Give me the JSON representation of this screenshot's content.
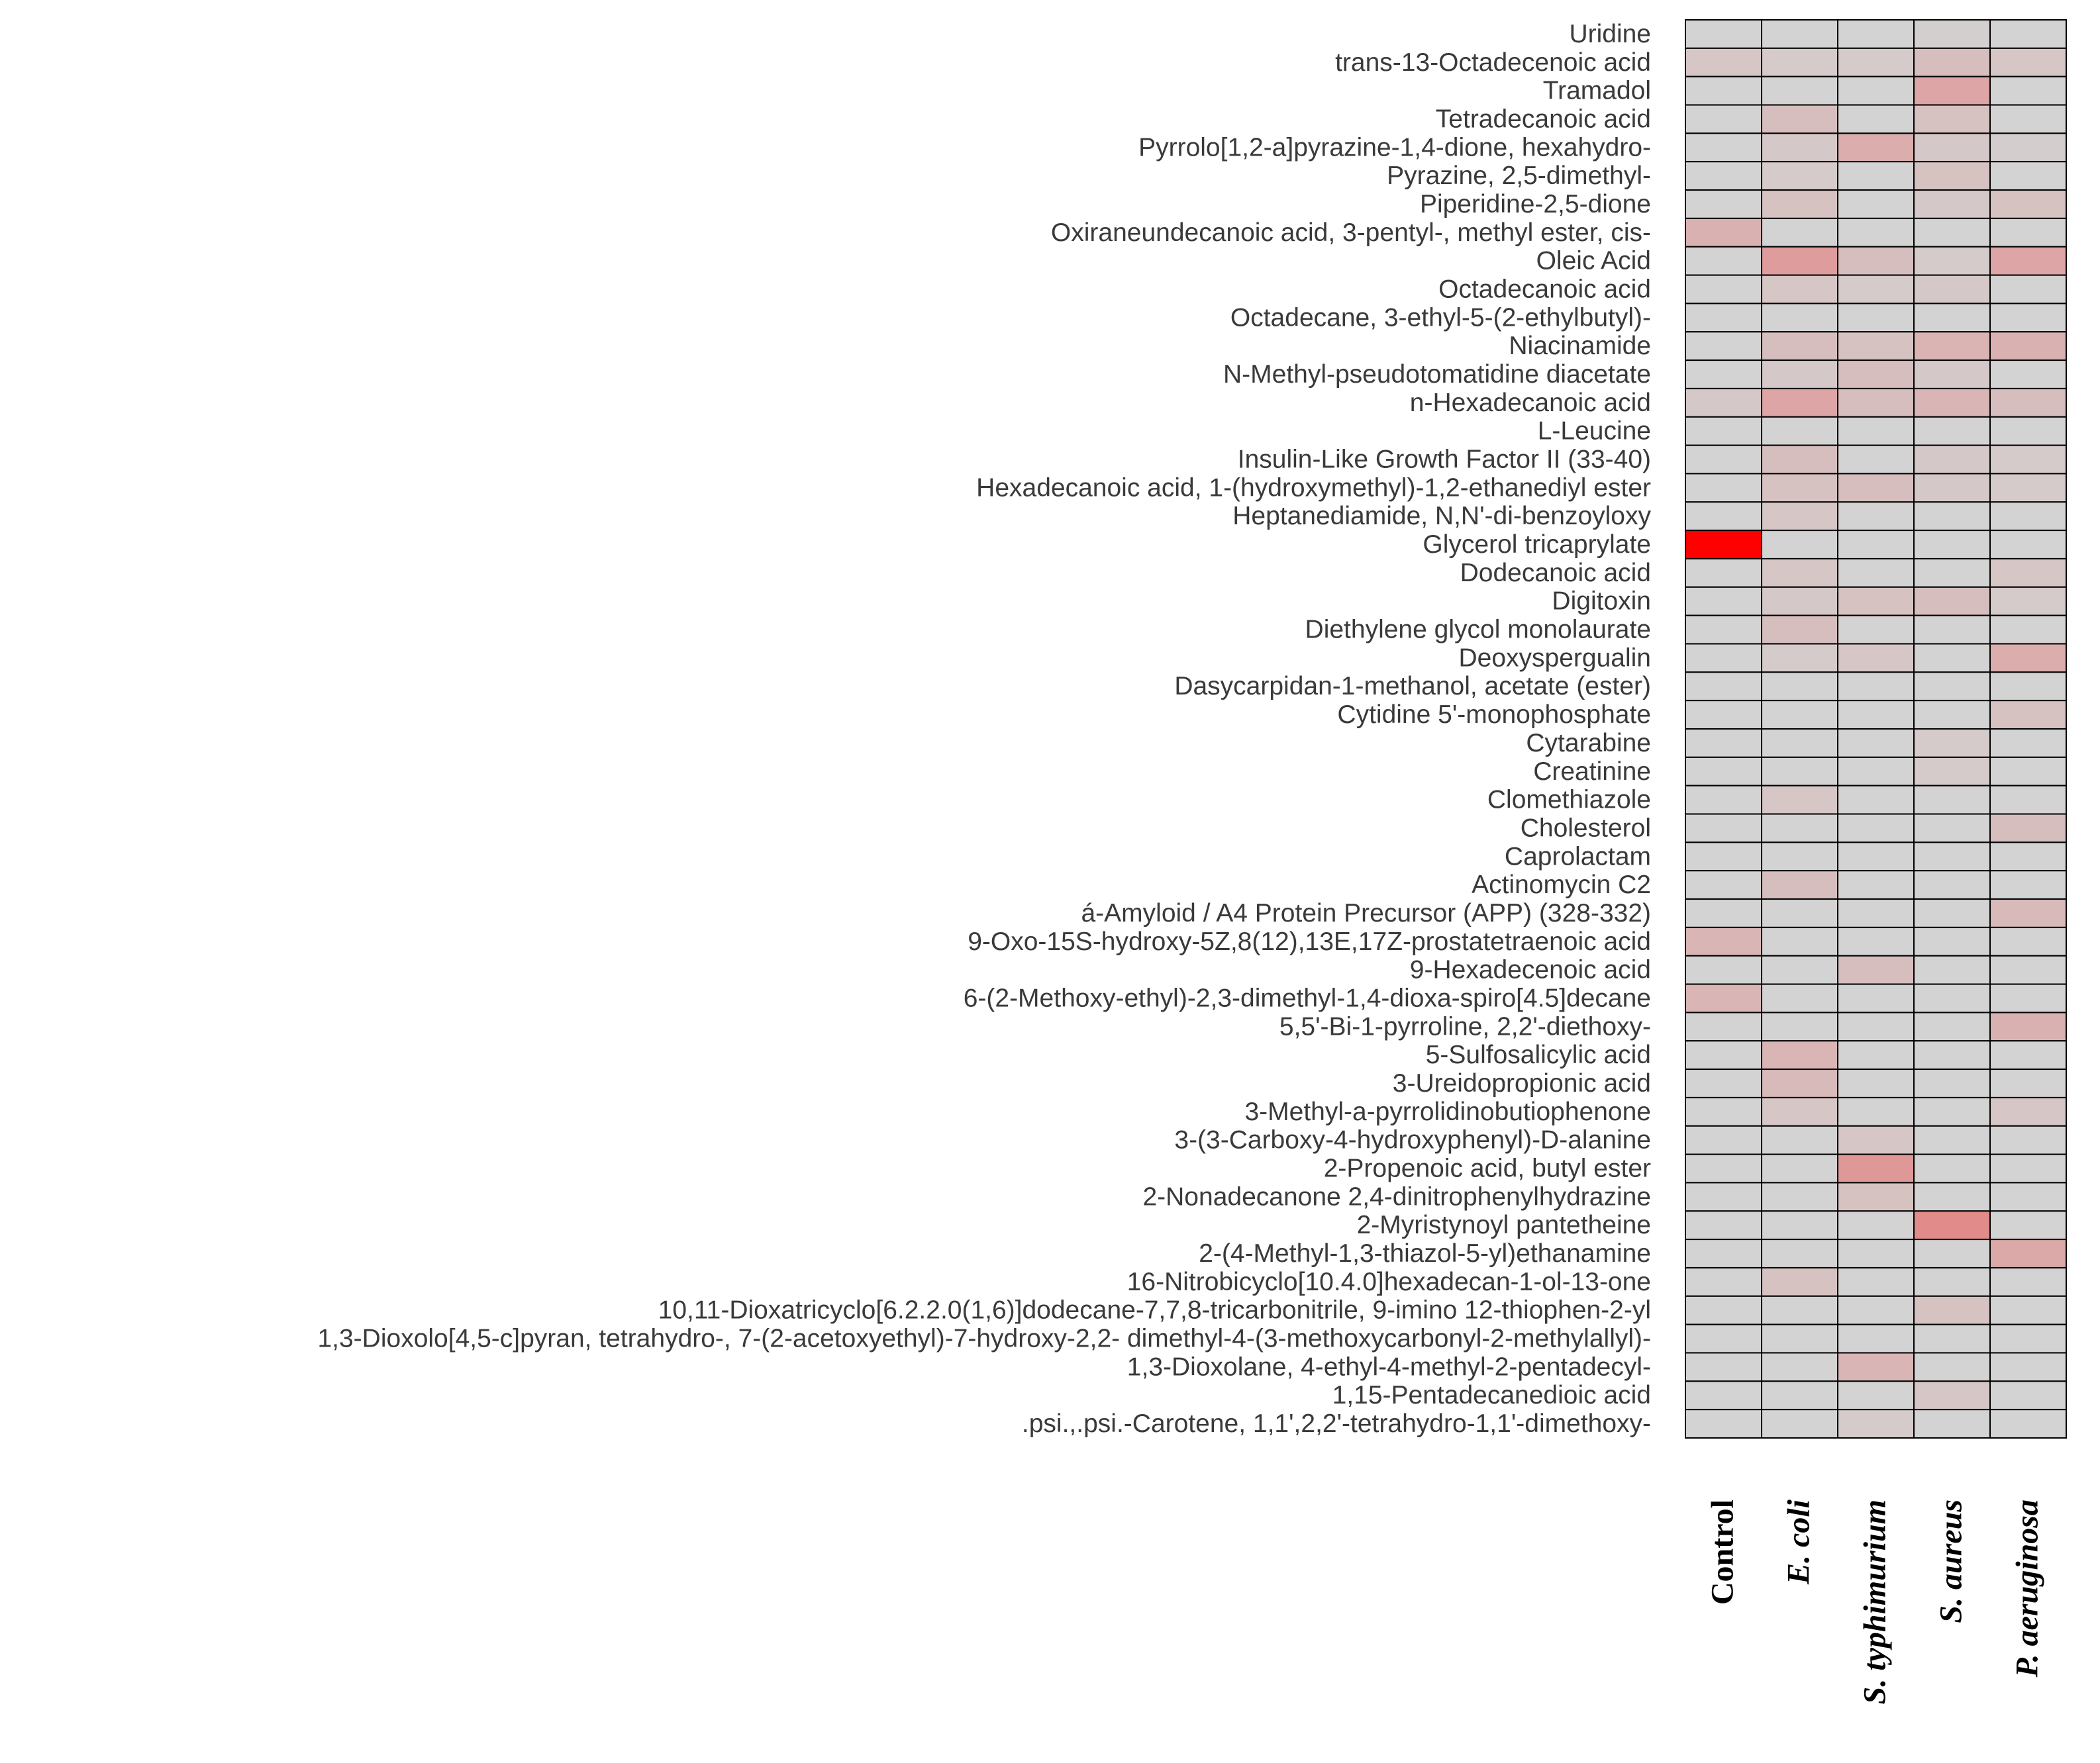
{
  "chart_data": {
    "type": "heatmap",
    "title": "",
    "xlabel": "",
    "ylabel": "",
    "columns": [
      {
        "label": "Control",
        "italic": false
      },
      {
        "label": "E. coli",
        "italic": true
      },
      {
        "label": "S. typhimurium",
        "italic": true
      },
      {
        "label": "S. aureus",
        "italic": true
      },
      {
        "label": "P. aeruginosa",
        "italic": true
      }
    ],
    "rows": [
      "Uridine",
      "trans-13-Octadecenoic acid",
      "Tramadol",
      "Tetradecanoic acid",
      "Pyrrolo[1,2-a]pyrazine-1,4-dione, hexahydro-",
      "Pyrazine, 2,5-dimethyl-",
      "Piperidine-2,5-dione",
      "Oxiraneundecanoic acid, 3-pentyl-, methyl ester, cis-",
      "Oleic Acid",
      "Octadecanoic acid",
      "Octadecane, 3-ethyl-5-(2-ethylbutyl)-",
      "Niacinamide",
      "N-Methyl-pseudotomatidine diacetate",
      "n-Hexadecanoic acid",
      "L-Leucine",
      "Insulin-Like Growth Factor II (33-40)",
      "Hexadecanoic acid, 1-(hydroxymethyl)-1,2-ethanediyl ester",
      "Heptanediamide, N,N'-di-benzoyloxy",
      "Glycerol tricaprylate",
      "Dodecanoic acid",
      "Digitoxin",
      "Diethylene glycol monolaurate",
      "Deoxyspergualin",
      "Dasycarpidan-1-methanol, acetate (ester)",
      "Cytidine 5'-monophosphate",
      "Cytarabine",
      "Creatinine",
      "Clomethiazole",
      "Cholesterol",
      "Caprolactam",
      "Actinomycin C2",
      "á-Amyloid / A4 Protein Precursor (APP) (328-332)",
      "9-Oxo-15S-hydroxy-5Z,8(12),13E,17Z-prostatetraenoic acid",
      "9-Hexadecenoic acid",
      "6-(2-Methoxy-ethyl)-2,3-dimethyl-1,4-dioxa-spiro[4.5]decane",
      "5,5'-Bi-1-pyrroline, 2,2'-diethoxy-",
      "5-Sulfosalicylic acid",
      "3-Ureidopropionic acid",
      "3-Methyl-a-pyrrolidinobutiophenone",
      "3-(3-Carboxy-4-hydroxyphenyl)-D-alanine",
      "2-Propenoic acid, butyl ester",
      "2-Nonadecanone 2,4-dinitrophenylhydrazine",
      "2-Myristynoyl pantetheine",
      "2-(4-Methyl-1,3-thiazol-5-yl)ethanamine",
      "16-Nitrobicyclo[10.4.0]hexadecan-1-ol-13-one",
      "10,11-Dioxatricyclo[6.2.2.0(1,6)]dodecane-7,7,8-tricarbonitrile, 9-imino  12-thiophen-2-yl",
      "1,3-Dioxolo[4,5-c]pyran, tetrahydro-, 7-(2-acetoxyethyl)-7-hydroxy-2,2- dimethyl-4-(3-methoxycarbonyl-2-methylallyl)-",
      "1,3-Dioxolane, 4-ethyl-4-methyl-2-pentadecyl-",
      "1,15-Pentadecanedioic acid",
      ".psi.,.psi.-Carotene, 1,1',2,2'-tetrahydro-1,1'-dimethoxy-"
    ],
    "values": [
      [
        0.0,
        0.0,
        0.0,
        0.02,
        0.0
      ],
      [
        0.06,
        0.04,
        0.04,
        0.1,
        0.06
      ],
      [
        0.0,
        0.0,
        0.0,
        0.22,
        0.0
      ],
      [
        0.0,
        0.1,
        0.0,
        0.08,
        0.0
      ],
      [
        0.0,
        0.05,
        0.18,
        0.05,
        0.03
      ],
      [
        0.0,
        0.04,
        0.0,
        0.08,
        0.0
      ],
      [
        0.0,
        0.08,
        0.0,
        0.05,
        0.08
      ],
      [
        0.16,
        0.0,
        0.0,
        0.0,
        0.0
      ],
      [
        0.0,
        0.26,
        0.1,
        0.04,
        0.22
      ],
      [
        0.0,
        0.06,
        0.04,
        0.05,
        0.0
      ],
      [
        0.0,
        0.0,
        0.0,
        0.0,
        0.0
      ],
      [
        0.0,
        0.1,
        0.08,
        0.15,
        0.16
      ],
      [
        0.0,
        0.05,
        0.1,
        0.05,
        0.0
      ],
      [
        0.05,
        0.22,
        0.1,
        0.14,
        0.1
      ],
      [
        0.0,
        0.0,
        0.0,
        0.0,
        0.0
      ],
      [
        0.0,
        0.1,
        0.0,
        0.05,
        0.04
      ],
      [
        0.0,
        0.08,
        0.1,
        0.05,
        0.04
      ],
      [
        0.0,
        0.06,
        0.0,
        0.0,
        0.0
      ],
      [
        1.0,
        0.0,
        0.0,
        0.0,
        0.0
      ],
      [
        0.0,
        0.06,
        0.0,
        0.0,
        0.06
      ],
      [
        0.0,
        0.05,
        0.08,
        0.1,
        0.04
      ],
      [
        0.0,
        0.1,
        0.0,
        0.0,
        0.0
      ],
      [
        0.0,
        0.04,
        0.06,
        0.0,
        0.18
      ],
      [
        0.0,
        0.0,
        0.0,
        0.0,
        0.0
      ],
      [
        0.0,
        0.0,
        0.0,
        0.0,
        0.08
      ],
      [
        0.0,
        0.0,
        0.0,
        0.04,
        0.0
      ],
      [
        0.0,
        0.0,
        0.0,
        0.04,
        0.0
      ],
      [
        0.0,
        0.06,
        0.0,
        0.0,
        0.0
      ],
      [
        0.0,
        0.0,
        0.0,
        0.0,
        0.1
      ],
      [
        0.0,
        0.0,
        0.0,
        0.0,
        0.0
      ],
      [
        0.0,
        0.1,
        0.0,
        0.0,
        0.0
      ],
      [
        0.0,
        0.0,
        0.0,
        0.0,
        0.12
      ],
      [
        0.14,
        0.0,
        0.0,
        0.0,
        0.0
      ],
      [
        0.0,
        0.0,
        0.1,
        0.0,
        0.0
      ],
      [
        0.14,
        0.0,
        0.0,
        0.0,
        0.0
      ],
      [
        0.0,
        0.0,
        0.0,
        0.0,
        0.16
      ],
      [
        0.0,
        0.14,
        0.0,
        0.0,
        0.0
      ],
      [
        0.0,
        0.12,
        0.0,
        0.0,
        0.0
      ],
      [
        0.0,
        0.06,
        0.0,
        0.0,
        0.06
      ],
      [
        0.0,
        0.0,
        0.06,
        0.0,
        0.0
      ],
      [
        0.0,
        0.0,
        0.28,
        0.0,
        0.0
      ],
      [
        0.0,
        0.0,
        0.08,
        0.0,
        0.0
      ],
      [
        0.0,
        0.0,
        0.0,
        0.34,
        0.0
      ],
      [
        0.0,
        0.0,
        0.0,
        0.0,
        0.2
      ],
      [
        0.0,
        0.08,
        0.0,
        0.0,
        0.0
      ],
      [
        0.0,
        0.0,
        0.0,
        0.08,
        0.0
      ],
      [
        0.0,
        0.0,
        0.0,
        0.0,
        0.0
      ],
      [
        0.0,
        0.0,
        0.14,
        0.0,
        0.0
      ],
      [
        0.0,
        0.0,
        0.0,
        0.06,
        0.0
      ],
      [
        0.0,
        0.0,
        0.04,
        0.0,
        0.0
      ]
    ],
    "value_range": [
      0,
      1
    ],
    "color_low": "#d3d3d3",
    "color_high": "#ff0000",
    "grid_color": "#000000",
    "legend": "none"
  }
}
